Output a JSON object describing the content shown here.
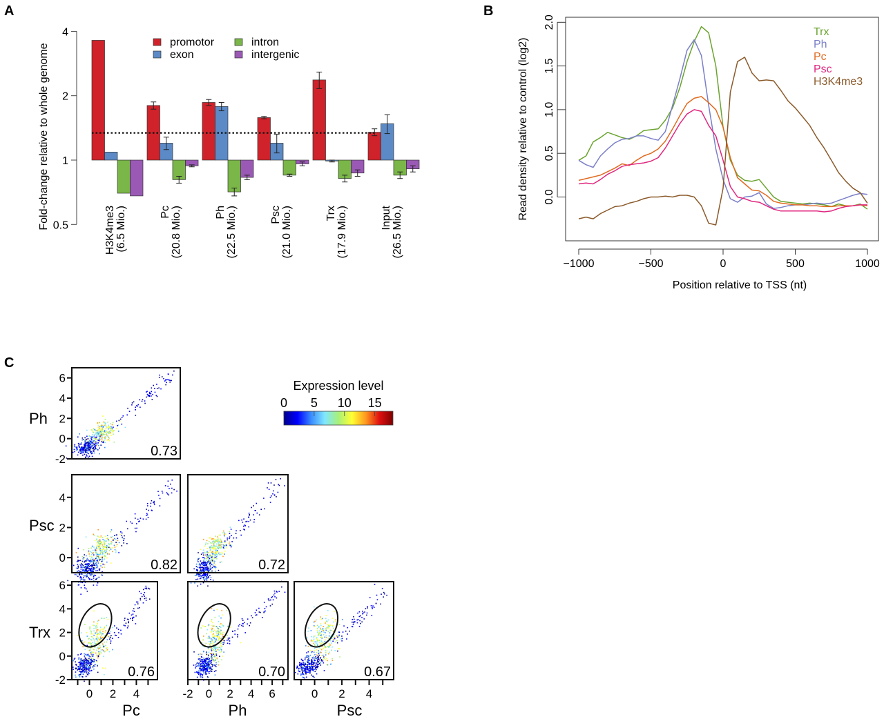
{
  "panels": {
    "A": "A",
    "B": "B",
    "C": "C"
  },
  "chart_data": [
    {
      "id": "A",
      "type": "bar",
      "ylabel": "Fold-change relative to whole genome",
      "yscale": "log2",
      "ylim": [
        0.5,
        4
      ],
      "yticks": [
        "0.5",
        "1",
        "2",
        "4"
      ],
      "ytick_values": [
        0.5,
        1,
        2,
        4
      ],
      "baseline": 1,
      "reference_line": 1.34,
      "categories": [
        "H3K4me3\n(6.5 Mio.)",
        "Pc\n(20.8 Mio.)",
        "Ph\n(22.5 Mio.)",
        "Psc\n(21.0 Mio.)",
        "Trx\n(17.9 Mio.)",
        "Input\n(26.5 Mio.)"
      ],
      "category_lines": [
        [
          "H3K4me3",
          "(6.5 Mio.)"
        ],
        [
          "Pc",
          "(20.8 Mio.)"
        ],
        [
          "Ph",
          "(22.5 Mio.)"
        ],
        [
          "Psc",
          "(21.0 Mio.)"
        ],
        [
          "Trx",
          "(17.9 Mio.)"
        ],
        [
          "Input",
          "(26.5 Mio.)"
        ]
      ],
      "legend": {
        "placement": "top-center"
      },
      "series": [
        {
          "name": "promotor",
          "color": "#d0222a",
          "values": [
            3.63,
            1.8,
            1.86,
            1.58,
            2.37,
            1.35
          ],
          "err": [
            0,
            0.07,
            0.06,
            0.02,
            0.21,
            0.05
          ]
        },
        {
          "name": "exon",
          "color": "#5b8ac6",
          "values": [
            1.09,
            1.2,
            1.78,
            1.2,
            0.99,
            1.48
          ],
          "err": [
            0,
            0.08,
            0.08,
            0.12,
            0.01,
            0.15
          ]
        },
        {
          "name": "intron",
          "color": "#7ab648",
          "values": [
            0.7,
            0.81,
            0.71,
            0.85,
            0.82,
            0.85
          ],
          "err": [
            0,
            0.03,
            0.03,
            0.01,
            0.03,
            0.03
          ]
        },
        {
          "name": "intergenic",
          "color": "#9b59b6",
          "values": [
            0.68,
            0.94,
            0.83,
            0.96,
            0.87,
            0.91
          ],
          "err": [
            0,
            0.01,
            0.02,
            0.02,
            0.03,
            0.03
          ]
        }
      ]
    },
    {
      "id": "B",
      "type": "line",
      "xlabel": "Position relative to TSS (nt)",
      "ylabel": "Read density relative to control (log2)",
      "xlim": [
        -1000,
        1000
      ],
      "ylim": [
        -0.45,
        2.05
      ],
      "xticks": [
        "−1000",
        "−500",
        "0",
        "500",
        "1000"
      ],
      "xtick_values": [
        -1000,
        -500,
        0,
        500,
        1000
      ],
      "yticks": [
        "0.0",
        "0.5",
        "1.0",
        "1.5",
        "2.0"
      ],
      "ytick_values": [
        0,
        0.5,
        1.0,
        1.5,
        2.0
      ],
      "legend": {
        "placement": "top-right"
      },
      "x": [
        -1000,
        -950,
        -900,
        -850,
        -800,
        -750,
        -700,
        -650,
        -600,
        -550,
        -500,
        -450,
        -400,
        -350,
        -300,
        -250,
        -200,
        -150,
        -100,
        -50,
        0,
        50,
        100,
        150,
        200,
        250,
        300,
        350,
        400,
        450,
        500,
        550,
        600,
        650,
        700,
        750,
        800,
        850,
        900,
        950,
        1000
      ],
      "series": [
        {
          "name": "Trx",
          "color": "#6aa32e",
          "values": [
            0.42,
            0.47,
            0.63,
            0.68,
            0.74,
            0.71,
            0.68,
            0.66,
            0.7,
            0.76,
            0.77,
            0.78,
            0.88,
            1.02,
            1.25,
            1.55,
            1.78,
            1.95,
            1.88,
            1.5,
            0.8,
            0.42,
            0.25,
            0.19,
            0.18,
            0.2,
            0.1,
            0.0,
            -0.05,
            -0.06,
            -0.07,
            -0.08,
            -0.07,
            -0.08,
            -0.09,
            -0.11,
            -0.08,
            -0.1,
            -0.1,
            -0.08,
            -0.14
          ]
        },
        {
          "name": "Ph",
          "color": "#7a7fc8",
          "values": [
            0.42,
            0.37,
            0.34,
            0.47,
            0.55,
            0.62,
            0.66,
            0.67,
            0.7,
            0.7,
            0.67,
            0.65,
            0.75,
            1.05,
            1.35,
            1.68,
            1.8,
            1.62,
            1.05,
            0.55,
            0.2,
            -0.02,
            -0.06,
            0.0,
            0.01,
            0.05,
            -0.08,
            -0.13,
            -0.12,
            -0.1,
            -0.09,
            -0.09,
            -0.08,
            -0.07,
            -0.08,
            -0.07,
            -0.04,
            -0.01,
            0.02,
            0.04,
            0.03
          ]
        },
        {
          "name": "Pc",
          "color": "#e06a1f",
          "values": [
            0.19,
            0.21,
            0.23,
            0.25,
            0.29,
            0.33,
            0.38,
            0.36,
            0.42,
            0.47,
            0.5,
            0.55,
            0.64,
            0.78,
            0.93,
            1.07,
            1.13,
            1.15,
            1.08,
            1.0,
            0.8,
            0.45,
            0.22,
            0.15,
            0.08,
            0.07,
            0.02,
            -0.05,
            -0.07,
            -0.08,
            -0.09,
            -0.09,
            -0.1,
            -0.1,
            -0.11,
            -0.11,
            -0.1,
            -0.1,
            -0.1,
            -0.09,
            -0.1
          ]
        },
        {
          "name": "Psc",
          "color": "#e0277f",
          "values": [
            0.15,
            0.16,
            0.15,
            0.2,
            0.26,
            0.3,
            0.35,
            0.37,
            0.38,
            0.39,
            0.41,
            0.45,
            0.56,
            0.7,
            0.84,
            0.95,
            1.0,
            0.98,
            0.82,
            0.7,
            0.42,
            0.12,
            0.0,
            -0.02,
            -0.05,
            -0.06,
            -0.1,
            -0.14,
            -0.16,
            -0.16,
            -0.16,
            -0.16,
            -0.16,
            -0.16,
            -0.17,
            -0.16,
            -0.13,
            -0.11,
            -0.1,
            -0.09,
            -0.09
          ]
        },
        {
          "name": "H3K4me3",
          "color": "#8b5a2b",
          "values": [
            -0.25,
            -0.23,
            -0.25,
            -0.19,
            -0.15,
            -0.11,
            -0.1,
            -0.07,
            -0.05,
            -0.02,
            0.0,
            0.0,
            0.01,
            0.0,
            0.02,
            0.02,
            0.0,
            -0.1,
            -0.3,
            -0.32,
            0.1,
            1.2,
            1.55,
            1.6,
            1.42,
            1.33,
            1.34,
            1.33,
            1.22,
            1.1,
            1.02,
            0.92,
            0.82,
            0.68,
            0.56,
            0.42,
            0.28,
            0.18,
            0.1,
            0.05,
            -0.07
          ]
        }
      ]
    },
    {
      "id": "C",
      "type": "scatter",
      "description": "Pairwise scatter matrix of log2 enrichment colored by expression level",
      "colorbar": {
        "title": "Expression level",
        "ticks": [
          "0",
          "5",
          "10",
          "15"
        ],
        "tick_values": [
          0,
          5,
          10,
          15
        ],
        "range": [
          0,
          18
        ],
        "stops": [
          "#00008b",
          "#0000ff",
          "#3a8cff",
          "#7fe7ff",
          "#a8f07a",
          "#ffff33",
          "#ff9a1f",
          "#e01010",
          "#7f0000"
        ]
      },
      "row_labels": [
        "Ph",
        "Psc",
        "Trx"
      ],
      "col_labels": [
        "Pc",
        "Ph",
        "Psc"
      ],
      "panels": [
        {
          "row": "Ph",
          "col": "Pc",
          "r": "0.73",
          "ylim": [
            -2,
            7
          ],
          "yticks": [
            "-2",
            "0",
            "2",
            "4",
            "6"
          ],
          "xlim": [
            -1.5,
            6.5
          ],
          "circled": false
        },
        {
          "row": "Psc",
          "col": "Pc",
          "r": "0.82",
          "ylim": [
            -1,
            5.5
          ],
          "yticks": [
            "0",
            "2",
            "4"
          ],
          "xlim": [
            -1.5,
            6
          ],
          "circled": false
        },
        {
          "row": "Psc",
          "col": "Ph",
          "r": "0.72",
          "ylim": [
            -1,
            5.5
          ],
          "yticks": [],
          "xlim": [
            -2,
            7.5
          ],
          "circled": false
        },
        {
          "row": "Trx",
          "col": "Pc",
          "r": "0.76",
          "ylim": [
            -2,
            6.3
          ],
          "yticks": [
            "-2",
            "0",
            "2",
            "4",
            "6"
          ],
          "xlim": [
            -1.5,
            5.8
          ],
          "xticks": [
            "0",
            "2",
            "4"
          ],
          "circled": true
        },
        {
          "row": "Trx",
          "col": "Ph",
          "r": "0.70",
          "ylim": [
            -2,
            6.3
          ],
          "yticks": [],
          "xlim": [
            -2,
            7.5
          ],
          "xticks": [
            "-2",
            "0",
            "2",
            "4",
            "6"
          ],
          "circled": true
        },
        {
          "row": "Trx",
          "col": "Psc",
          "r": "0.67",
          "ylim": [
            -2,
            6.3
          ],
          "yticks": [],
          "xlim": [
            -1.5,
            5.8
          ],
          "xticks": [
            "0",
            "2",
            "4"
          ],
          "circled": true
        }
      ]
    }
  ]
}
